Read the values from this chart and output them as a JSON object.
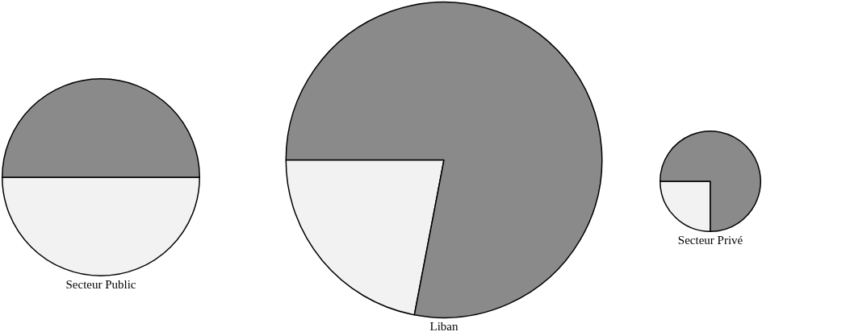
{
  "chart_data": [
    {
      "type": "pie",
      "title": "Secteur Public",
      "categories": [
        null,
        null
      ],
      "values": [
        50,
        50
      ],
      "colors": [
        "#f2f2f2",
        "#8a8a8a"
      ],
      "legend": false
    },
    {
      "type": "pie",
      "title": "Liban",
      "categories": [
        null,
        null
      ],
      "values": [
        22,
        78
      ],
      "colors": [
        "#f2f2f2",
        "#8a8a8a"
      ],
      "legend": false
    },
    {
      "type": "pie",
      "title": "Secteur Privé",
      "categories": [
        null,
        null
      ],
      "values": [
        25,
        75
      ],
      "colors": [
        "#f2f2f2",
        "#8a8a8a"
      ],
      "legend": false
    }
  ]
}
